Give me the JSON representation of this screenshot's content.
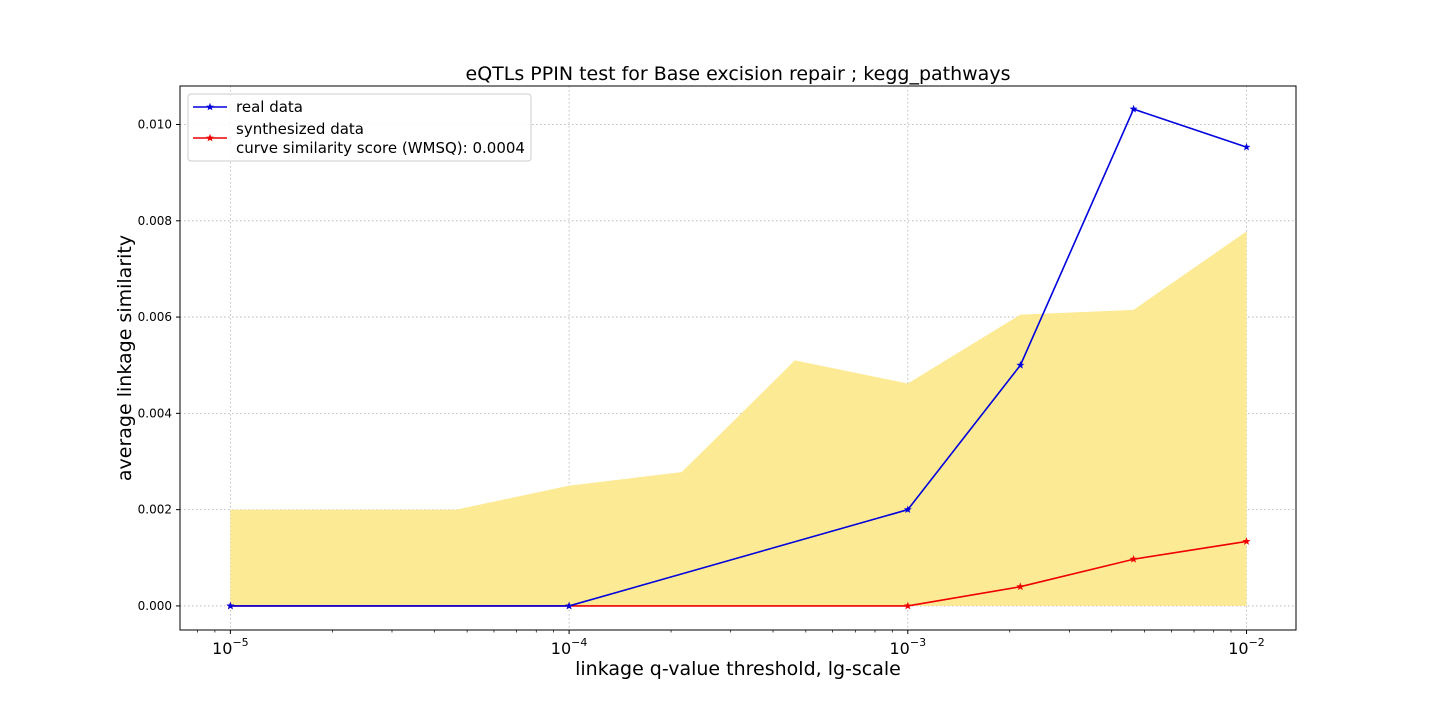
{
  "chart_data": {
    "type": "line",
    "title": "eQTLs PPIN test for Base excision repair ; kegg_pathways",
    "xlabel": "linkage q-value threshold, lg-scale",
    "ylabel": "average linkage similarity",
    "x_scale": "log",
    "xlim": [
      7.1e-06,
      0.014
    ],
    "ylim": [
      -0.0005,
      0.0108
    ],
    "grid": true,
    "legend_position": "top-left",
    "x_ticks": [
      {
        "value": 1e-05,
        "base": "10",
        "exp": "−5"
      },
      {
        "value": 0.0001,
        "base": "10",
        "exp": "−4"
      },
      {
        "value": 0.001,
        "base": "10",
        "exp": "−3"
      },
      {
        "value": 0.01,
        "base": "10",
        "exp": "−2"
      }
    ],
    "y_ticks": [
      {
        "value": 0,
        "label": "0.000"
      },
      {
        "value": 0.002,
        "label": "0.002"
      },
      {
        "value": 0.004,
        "label": "0.004"
      },
      {
        "value": 0.006,
        "label": "0.006"
      },
      {
        "value": 0.008,
        "label": "0.008"
      },
      {
        "value": 0.01,
        "label": "0.010"
      }
    ],
    "band": {
      "color": "#fde98f",
      "x": [
        1e-05,
        4.64e-05,
        0.0001,
        0.000215,
        0.000464,
        0.001,
        0.00215,
        0.00464,
        0.01
      ],
      "lower": [
        0,
        0,
        0,
        0,
        0,
        0,
        0,
        0,
        0
      ],
      "upper": [
        0.002,
        0.002,
        0.0025,
        0.00278,
        0.0051,
        0.00462,
        0.00605,
        0.00615,
        0.00778
      ]
    },
    "series": [
      {
        "name": "real data",
        "color": "#0000dd",
        "x": [
          1e-05,
          0.0001,
          0.001,
          0.00215,
          0.00464,
          0.01
        ],
        "values": [
          0,
          0,
          0.002,
          0.005,
          0.01032,
          0.00953
        ]
      },
      {
        "name": "synthesized data",
        "legend_extra": "curve similarity score (WMSQ): 0.0004",
        "color": "#ee0000",
        "x": [
          1e-05,
          0.0001,
          0.001,
          0.00215,
          0.00464,
          0.01
        ],
        "values": [
          0,
          0,
          0,
          0.0004,
          0.00097,
          0.00134
        ]
      }
    ]
  }
}
